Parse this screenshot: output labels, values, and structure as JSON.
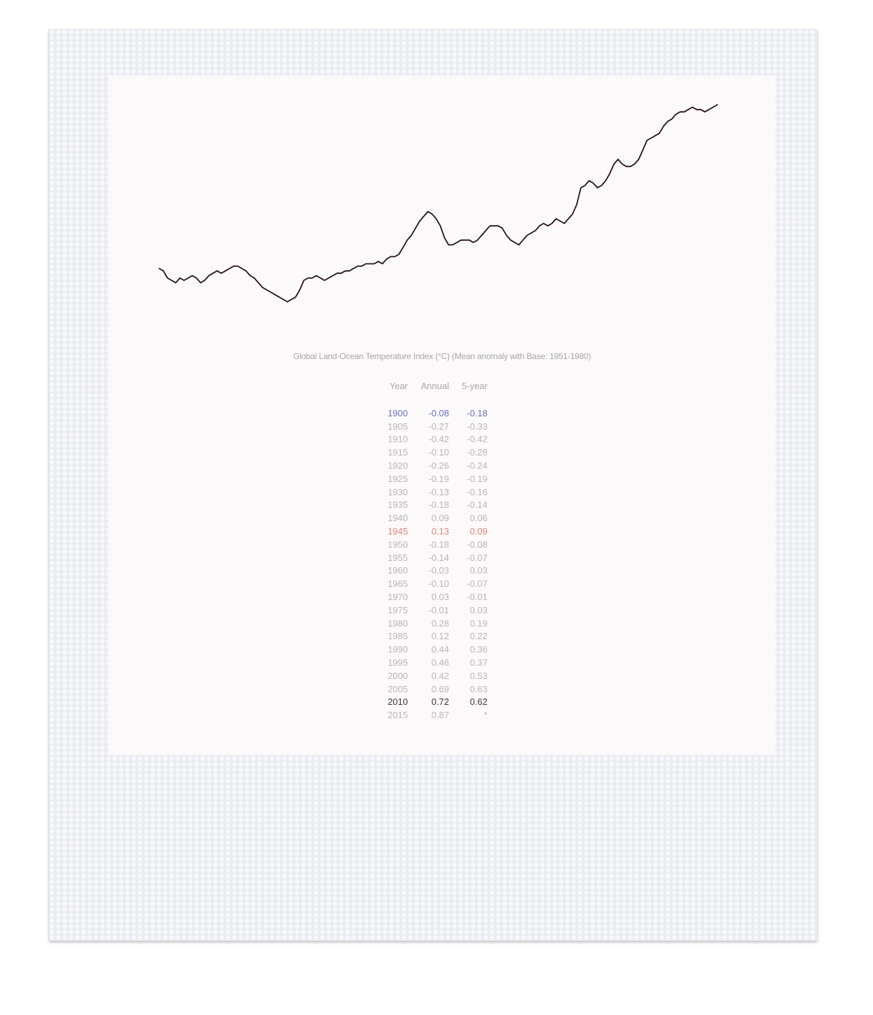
{
  "colors": {
    "line": "#2a0f1e",
    "table_text": "#b7b4b9",
    "highlight_blue": "#6a6fc4",
    "highlight_red": "#e0847a",
    "highlight_dark": "#3a3440"
  },
  "table": {
    "title": "Global Land-Ocean Temperature Index (°C) (Mean anomaly with Base: 1951-1980)",
    "headers": {
      "year": "Year",
      "annual": "Annual",
      "five_year": "5-year"
    },
    "rows": [
      {
        "year": "1900",
        "annual": "-0.08",
        "five_year": "-0.18",
        "highlight": "blue"
      },
      {
        "year": "1905",
        "annual": "-0.27",
        "five_year": "-0.33"
      },
      {
        "year": "1910",
        "annual": "-0.42",
        "five_year": "-0.42"
      },
      {
        "year": "1915",
        "annual": "-0.10",
        "five_year": "-0.28"
      },
      {
        "year": "1920",
        "annual": "-0.26",
        "five_year": "-0.24"
      },
      {
        "year": "1925",
        "annual": "-0.19",
        "five_year": "-0.19"
      },
      {
        "year": "1930",
        "annual": "-0.13",
        "five_year": "-0.16"
      },
      {
        "year": "1935",
        "annual": "-0.18",
        "five_year": "-0.14"
      },
      {
        "year": "1940",
        "annual": "0.09",
        "five_year": "0.06"
      },
      {
        "year": "1945",
        "annual": "0.13",
        "five_year": "0.09",
        "highlight": "red"
      },
      {
        "year": "1950",
        "annual": "-0.18",
        "five_year": "-0.08"
      },
      {
        "year": "1955",
        "annual": "-0.14",
        "five_year": "-0.07"
      },
      {
        "year": "1960",
        "annual": "-0.03",
        "five_year": "0.03"
      },
      {
        "year": "1965",
        "annual": "-0.10",
        "five_year": "-0.07"
      },
      {
        "year": "1970",
        "annual": "0.03",
        "five_year": "-0.01"
      },
      {
        "year": "1975",
        "annual": "-0.01",
        "five_year": "0.03"
      },
      {
        "year": "1980",
        "annual": "0.28",
        "five_year": "0.19"
      },
      {
        "year": "1985",
        "annual": "0.12",
        "five_year": "0.22"
      },
      {
        "year": "1990",
        "annual": "0.44",
        "five_year": "0.36"
      },
      {
        "year": "1995",
        "annual": "0.46",
        "five_year": "0.37"
      },
      {
        "year": "2000",
        "annual": "0.42",
        "five_year": "0.53"
      },
      {
        "year": "2005",
        "annual": "0.69",
        "five_year": "0.63"
      },
      {
        "year": "2010",
        "annual": "0.72",
        "five_year": "0.62",
        "highlight": "dark"
      },
      {
        "year": "2015",
        "annual": "0.87",
        "five_year": "*"
      }
    ]
  },
  "chart_data": {
    "type": "line",
    "title": "",
    "xlabel": "",
    "ylabel": "",
    "grid": false,
    "axes_visible": false,
    "xlim": [
      1880,
      2015
    ],
    "ylim": [
      -0.5,
      0.8
    ],
    "series": [
      {
        "x": [
          1880,
          1881,
          1882,
          1883,
          1884,
          1885,
          1886,
          1887,
          1888,
          1889,
          1890,
          1891,
          1892,
          1893,
          1894,
          1895,
          1896,
          1897,
          1898,
          1899,
          1900,
          1901,
          1902,
          1903,
          1904,
          1905,
          1906,
          1907,
          1908,
          1909,
          1910,
          1911,
          1912,
          1913,
          1914,
          1915,
          1916,
          1917,
          1918,
          1919,
          1920,
          1921,
          1922,
          1923,
          1924,
          1925,
          1926,
          1927,
          1928,
          1929,
          1930,
          1931,
          1932,
          1933,
          1934,
          1935,
          1936,
          1937,
          1938,
          1939,
          1940,
          1941,
          1942,
          1943,
          1944,
          1945,
          1946,
          1947,
          1948,
          1949,
          1950,
          1951,
          1952,
          1953,
          1954,
          1955,
          1956,
          1957,
          1958,
          1959,
          1960,
          1961,
          1962,
          1963,
          1964,
          1965,
          1966,
          1967,
          1968,
          1969,
          1970,
          1971,
          1972,
          1973,
          1974,
          1975,
          1976,
          1977,
          1978,
          1979,
          1980,
          1981,
          1982,
          1983,
          1984,
          1985,
          1986,
          1987,
          1988,
          1989,
          1990,
          1991,
          1992,
          1993,
          1994,
          1995,
          1996,
          1997,
          1998,
          1999,
          2000,
          2001,
          2002,
          2003,
          2004,
          2005,
          2006,
          2007,
          2008,
          2009,
          2010,
          2011,
          2012,
          2013,
          2014,
          2015
        ],
        "y": [
          -0.24,
          -0.25,
          -0.28,
          -0.29,
          -0.3,
          -0.28,
          -0.29,
          -0.28,
          -0.27,
          -0.28,
          -0.3,
          -0.29,
          -0.27,
          -0.26,
          -0.25,
          -0.26,
          -0.25,
          -0.24,
          -0.23,
          -0.23,
          -0.24,
          -0.25,
          -0.27,
          -0.28,
          -0.3,
          -0.32,
          -0.33,
          -0.34,
          -0.35,
          -0.36,
          -0.37,
          -0.38,
          -0.37,
          -0.36,
          -0.33,
          -0.29,
          -0.28,
          -0.28,
          -0.27,
          -0.28,
          -0.29,
          -0.28,
          -0.27,
          -0.26,
          -0.26,
          -0.25,
          -0.25,
          -0.24,
          -0.23,
          -0.23,
          -0.22,
          -0.22,
          -0.22,
          -0.21,
          -0.22,
          -0.2,
          -0.19,
          -0.19,
          -0.18,
          -0.15,
          -0.12,
          -0.1,
          -0.07,
          -0.04,
          -0.02,
          0.0,
          -0.01,
          -0.03,
          -0.06,
          -0.11,
          -0.14,
          -0.14,
          -0.13,
          -0.12,
          -0.12,
          -0.12,
          -0.13,
          -0.12,
          -0.1,
          -0.08,
          -0.06,
          -0.06,
          -0.06,
          -0.07,
          -0.1,
          -0.12,
          -0.13,
          -0.14,
          -0.12,
          -0.1,
          -0.09,
          -0.08,
          -0.06,
          -0.05,
          -0.06,
          -0.05,
          -0.03,
          -0.04,
          -0.05,
          -0.03,
          -0.01,
          0.03,
          0.1,
          0.11,
          0.13,
          0.12,
          0.1,
          0.11,
          0.13,
          0.16,
          0.2,
          0.22,
          0.2,
          0.19,
          0.19,
          0.2,
          0.22,
          0.26,
          0.3,
          0.31,
          0.32,
          0.33,
          0.36,
          0.38,
          0.39,
          0.41,
          0.42,
          0.42,
          0.43,
          0.44,
          0.43,
          0.43,
          0.42,
          0.43,
          0.44,
          0.45
        ]
      }
    ]
  }
}
